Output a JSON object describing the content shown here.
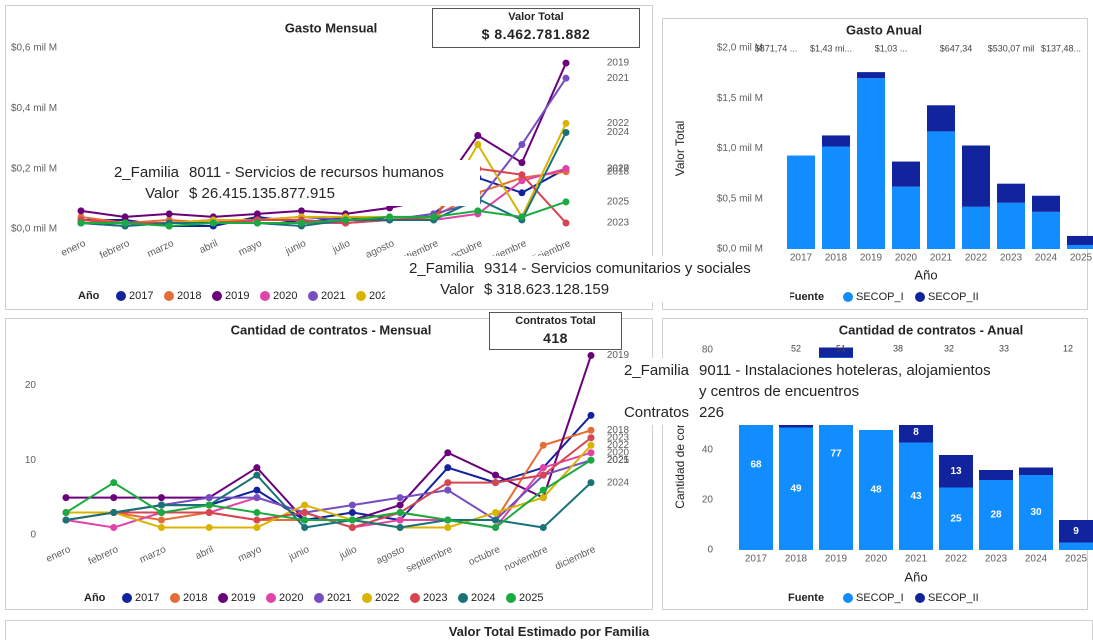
{
  "chart_data": [
    {
      "type": "line",
      "title": "Gasto Mensual",
      "categories": [
        "enero",
        "febrero",
        "marzo",
        "abril",
        "mayo",
        "junio",
        "julio",
        "agosto",
        "septiembre",
        "octubre",
        "noviembre",
        "diciembre"
      ],
      "series": [
        {
          "name": "2017",
          "color": "#12239E",
          "values": [
            0.03,
            0.03,
            0.01,
            0.01,
            0.04,
            0.02,
            0.04,
            0.03,
            0.05,
            0.17,
            0.12,
            0.2
          ]
        },
        {
          "name": "2018",
          "color": "#E66C37",
          "values": [
            0.04,
            0.02,
            0.03,
            0.02,
            0.03,
            0.03,
            0.02,
            0.03,
            0.04,
            0.12,
            0.17,
            0.19
          ]
        },
        {
          "name": "2019",
          "color": "#6B007B",
          "values": [
            0.06,
            0.04,
            0.05,
            0.04,
            0.05,
            0.06,
            0.05,
            0.07,
            0.1,
            0.31,
            0.22,
            0.55
          ]
        },
        {
          "name": "2020",
          "color": "#E044A7",
          "values": [
            0.03,
            0.02,
            0.02,
            0.03,
            0.02,
            0.02,
            0.02,
            0.03,
            0.03,
            0.05,
            0.16,
            0.2
          ]
        },
        {
          "name": "2021",
          "color": "#744EC2",
          "values": [
            0.02,
            0.01,
            0.02,
            0.03,
            0.03,
            0.04,
            0.03,
            0.03,
            0.05,
            0.09,
            0.28,
            0.5
          ]
        },
        {
          "name": "2022",
          "color": "#D9B300",
          "values": [
            0.03,
            0.02,
            0.02,
            0.03,
            0.03,
            0.04,
            0.04,
            0.04,
            0.03,
            0.28,
            0.04,
            0.35
          ]
        },
        {
          "name": "2023",
          "color": "#D64550",
          "values": [
            0.03,
            0.02,
            0.02,
            0.02,
            0.03,
            0.03,
            0.02,
            0.03,
            0.04,
            0.2,
            0.18,
            0.02
          ]
        },
        {
          "name": "2024",
          "color": "#197278",
          "values": [
            0.02,
            0.01,
            0.02,
            0.02,
            0.02,
            0.01,
            0.03,
            0.03,
            0.03,
            0.1,
            0.03,
            0.32
          ]
        },
        {
          "name": "2025",
          "color": "#1AAB40",
          "values": [
            0.02,
            0.02,
            0.01,
            0.02,
            0.02,
            0.02,
            0.03,
            0.04,
            0.04,
            0.06,
            0.04,
            0.09
          ]
        }
      ],
      "ylim": [
        0,
        0.6
      ],
      "yticks": [
        {
          "value": 0,
          "label": "$0,0 mil M"
        },
        {
          "value": 0.2,
          "label": "$0,2 mil M"
        },
        {
          "value": 0.4,
          "label": "$0,4 mil M"
        },
        {
          "value": 0.6,
          "label": "$0,6 mil M"
        }
      ],
      "grid": false,
      "end_labels": true,
      "legend_title": "Año"
    },
    {
      "type": "bar",
      "title": "Gasto Anual",
      "stacked": true,
      "categories": [
        "2017",
        "2018",
        "2019",
        "2020",
        "2021",
        "2022",
        "2023",
        "2024",
        "2025"
      ],
      "series": [
        {
          "name": "SECOP_I",
          "color": "#118DFF",
          "values": [
            0.93,
            1.02,
            1.7,
            0.62,
            1.17,
            0.42,
            0.46,
            0.37,
            0.04
          ]
        },
        {
          "name": "SECOP_II",
          "color": "#12239E",
          "values": [
            0,
            0.11,
            0.06,
            0.25,
            0.26,
            0.61,
            0.19,
            0.16,
            0.09
          ]
        }
      ],
      "ylim": [
        0,
        2
      ],
      "yticks": [
        {
          "value": 0,
          "label": "$0,0 mil M"
        },
        {
          "value": 0.5,
          "label": "$0,5 mil M"
        },
        {
          "value": 1,
          "label": "$1,0 mil M"
        },
        {
          "value": 1.5,
          "label": "$1,5 mil M"
        },
        {
          "value": 2,
          "label": "$2,0 mil M"
        }
      ],
      "y_label": "Valor Total",
      "x_label": "Año",
      "legend_title": "Fuente",
      "grid": false,
      "annotations": [
        "$871,74 ...",
        "$1,43 mi...",
        "$1,03 ...",
        "$647,34",
        "$530,07 mil",
        "$137,48..."
      ]
    },
    {
      "type": "line",
      "title": "Cantidad de contratos - Mensual",
      "categories": [
        "enero",
        "febrero",
        "marzo",
        "abril",
        "mayo",
        "junio",
        "julio",
        "agosto",
        "septiembre",
        "octubre",
        "noviembre",
        "diciembre"
      ],
      "series": [
        {
          "name": "2017",
          "color": "#12239E",
          "values": [
            3,
            3,
            4,
            4,
            6,
            2,
            3,
            2,
            9,
            7,
            9,
            16
          ]
        },
        {
          "name": "2018",
          "color": "#E66C37",
          "values": [
            2,
            3,
            2,
            3,
            2,
            2,
            2,
            3,
            2,
            2,
            12,
            14
          ]
        },
        {
          "name": "2019",
          "color": "#6B007B",
          "values": [
            5,
            5,
            5,
            5,
            9,
            2,
            2,
            4,
            11,
            8,
            5,
            24
          ]
        },
        {
          "name": "2020",
          "color": "#E044A7",
          "values": [
            2,
            1,
            3,
            3,
            5,
            3,
            1,
            2,
            2,
            1,
            9,
            11
          ]
        },
        {
          "name": "2021",
          "color": "#744EC2",
          "values": [
            3,
            3,
            4,
            5,
            5,
            3,
            4,
            5,
            6,
            2,
            8,
            10
          ]
        },
        {
          "name": "2022",
          "color": "#D9B300",
          "values": [
            3,
            3,
            1,
            1,
            1,
            4,
            2,
            1,
            1,
            3,
            5,
            12
          ]
        },
        {
          "name": "2023",
          "color": "#D64550",
          "values": [
            2,
            3,
            3,
            3,
            2,
            3,
            1,
            3,
            7,
            7,
            8,
            13
          ]
        },
        {
          "name": "2024",
          "color": "#197278",
          "values": [
            2,
            3,
            4,
            4,
            8,
            1,
            2,
            1,
            2,
            2,
            1,
            7
          ]
        },
        {
          "name": "2025",
          "color": "#1AAB40",
          "values": [
            3,
            7,
            3,
            4,
            3,
            2,
            2,
            3,
            2,
            1,
            6,
            10
          ]
        }
      ],
      "ylim": [
        0,
        25
      ],
      "yticks": [
        0,
        10,
        20
      ],
      "grid": false,
      "end_labels": true,
      "legend_title": "Año"
    },
    {
      "type": "bar",
      "title": "Cantidad de contratos - Anual",
      "stacked": true,
      "categories": [
        "2017",
        "2018",
        "2019",
        "2020",
        "2021",
        "2022",
        "2023",
        "2024",
        "2025"
      ],
      "series": [
        {
          "name": "SECOP_I",
          "color": "#118DFF",
          "values": [
            68,
            49,
            77,
            48,
            43,
            25,
            28,
            30,
            3
          ]
        },
        {
          "name": "SECOP_II",
          "color": "#12239E",
          "values": [
            0,
            3,
            4,
            0,
            8,
            13,
            4,
            3,
            9
          ]
        }
      ],
      "ylim": [
        0,
        80
      ],
      "yticks": [
        0,
        20,
        40,
        60,
        80
      ],
      "y_label": "Cantidad de contratos",
      "x_label": "Año",
      "legend_title": "Fuente",
      "grid": false,
      "segment_labels": true,
      "annotations": [
        "52",
        "51",
        "38",
        "32",
        "33",
        "12"
      ]
    }
  ],
  "cards": [
    {
      "title": "Valor Total",
      "value": "$ 8.462.781.882"
    },
    {
      "title": "Contratos Total",
      "value": "418"
    }
  ],
  "tooltips": [
    {
      "rows": [
        {
          "label": "2_Familia",
          "value": [
            "8011 - Servicios de recursos humanos"
          ]
        },
        {
          "label": "Valor",
          "value": [
            "$ 26.415.135.877.915"
          ]
        }
      ]
    },
    {
      "rows": [
        {
          "label": "2_Familia",
          "value": [
            "9314 - Servicios comunitarios y sociales"
          ]
        },
        {
          "label": "Valor",
          "value": [
            "$ 318.623.128.159"
          ]
        }
      ]
    },
    {
      "rows": [
        {
          "label": "2_Familia",
          "value": [
            "9011 - Instalaciones hoteleras, alojamientos",
            "y centros de encuentros"
          ]
        },
        {
          "label": "Contratos",
          "value": [
            "226"
          ]
        }
      ]
    }
  ],
  "footer_title": "Valor Total Estimado por Familia"
}
